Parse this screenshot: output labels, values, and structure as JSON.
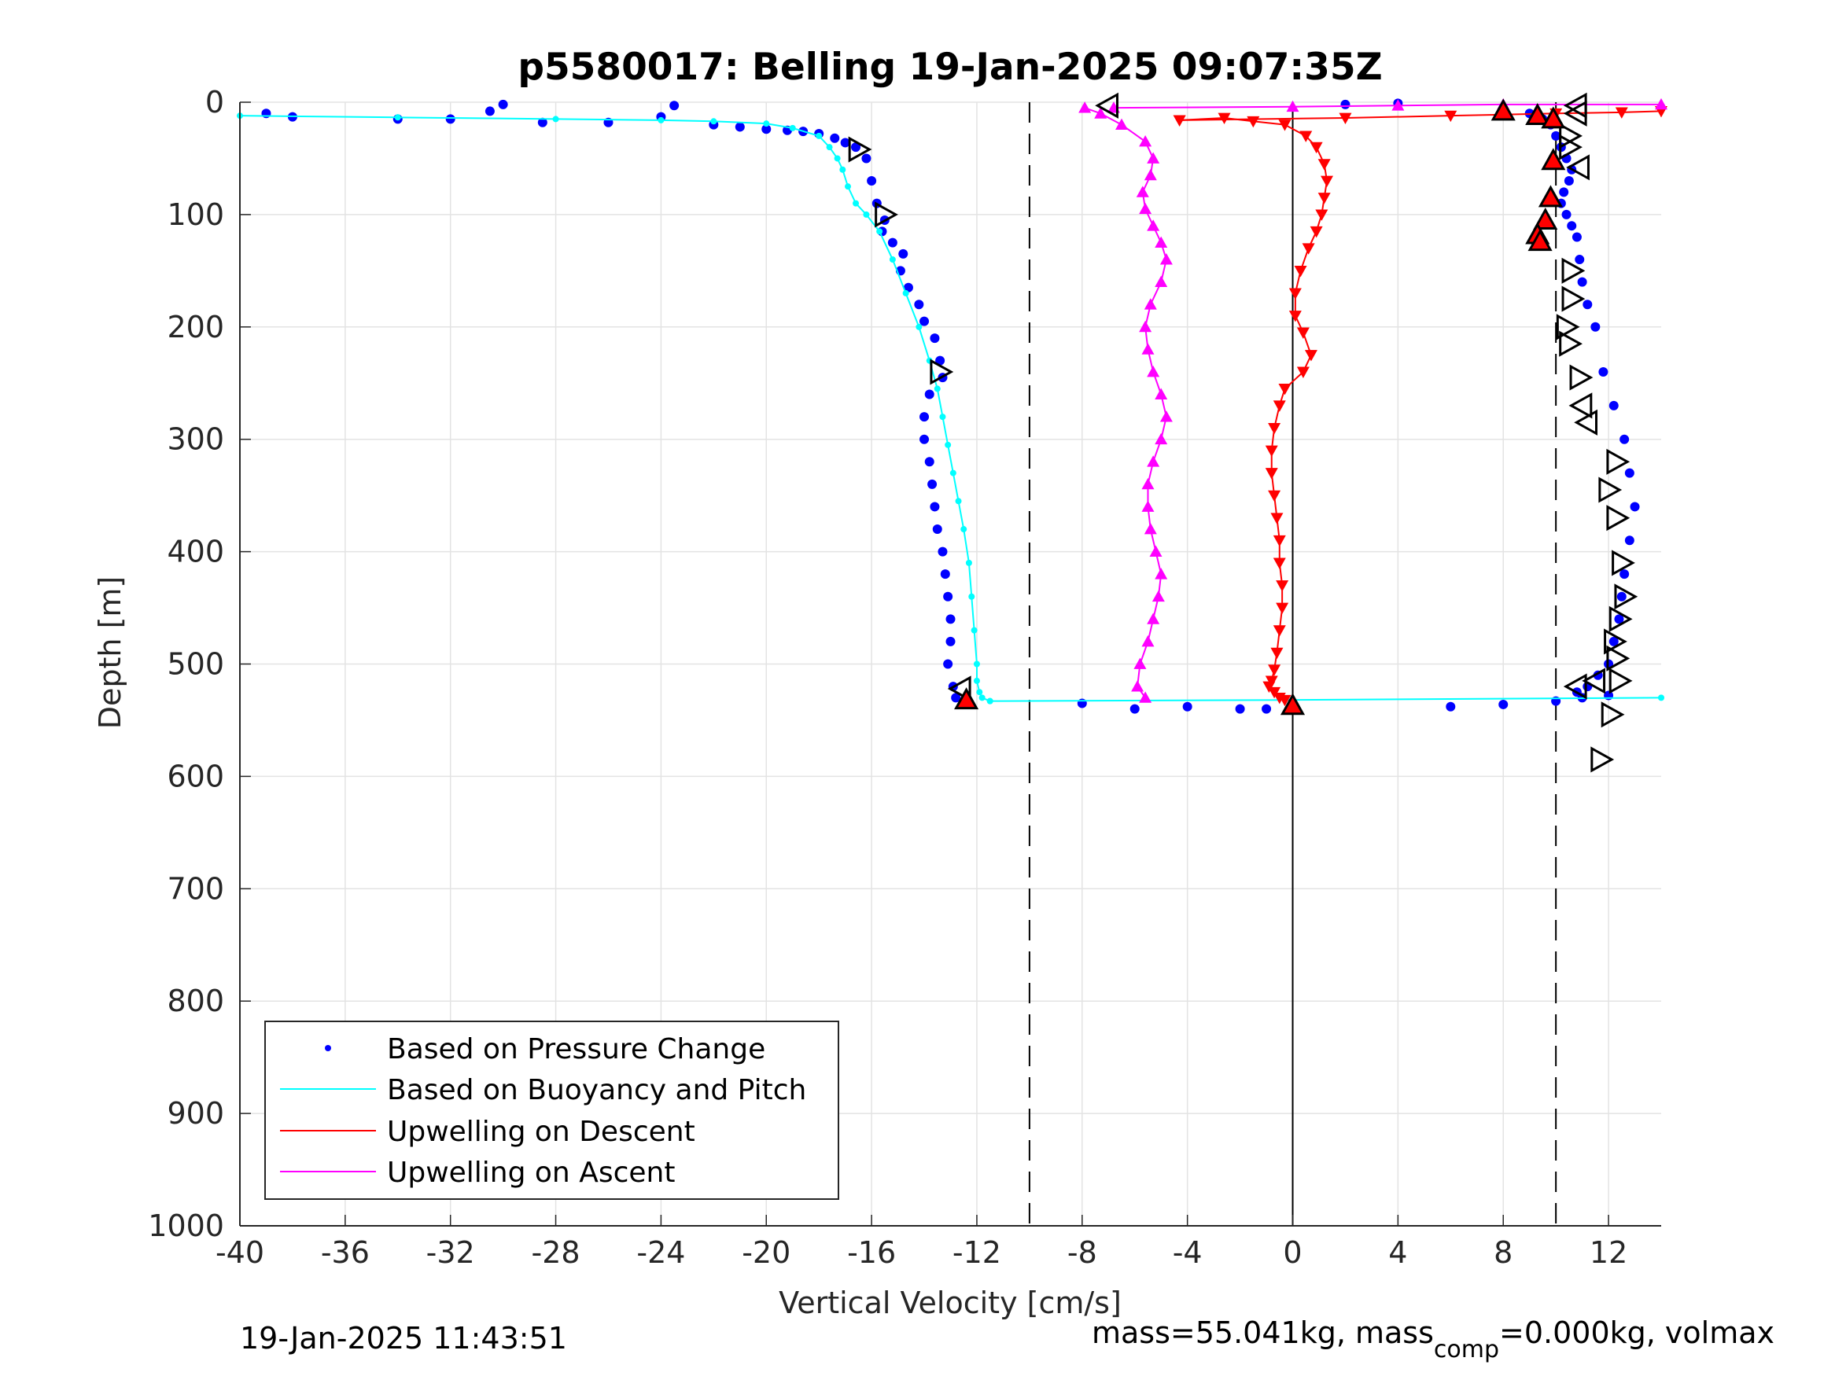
{
  "chart_data": {
    "type": "scatter",
    "title": "p5580017: Belling 19-Jan-2025 09:07:35Z",
    "xlabel": "Vertical Velocity [cm/s]",
    "ylabel": "Depth [m]",
    "xlim": [
      -40,
      14
    ],
    "ylim": [
      0,
      1000
    ],
    "y_reversed": true,
    "grid": true,
    "x_ticks": [
      "-40",
      "-36",
      "-32",
      "-28",
      "-24",
      "-20",
      "-16",
      "-12",
      "-8",
      "-4",
      "0",
      "4",
      "8",
      "12"
    ],
    "x_tick_values": [
      -40,
      -36,
      -32,
      -28,
      -24,
      -20,
      -16,
      -12,
      -8,
      -4,
      0,
      4,
      8,
      12
    ],
    "y_ticks": [
      "0",
      "100",
      "200",
      "300",
      "400",
      "500",
      "600",
      "700",
      "800",
      "900",
      "1000"
    ],
    "y_tick_values": [
      0,
      100,
      200,
      300,
      400,
      500,
      600,
      700,
      800,
      900,
      1000
    ],
    "reference_lines": {
      "dashed_x": [
        -10,
        10
      ],
      "solid_x": [
        0
      ]
    },
    "legend_position": "bottom-left",
    "legend": [
      "Based on Pressure Change",
      "Based on Buoyancy and Pitch",
      "Upwelling on Descent",
      "Upwelling on Ascent"
    ],
    "series": [
      {
        "name": "Based on Pressure Change",
        "kind": "points",
        "color": "#0000ff",
        "segments": [
          {
            "x": [
              -39,
              -38,
              -34,
              -32,
              -30.5,
              -28.5,
              -26,
              -24,
              -23.5,
              -22,
              -21,
              -20,
              -19.2,
              -18.6,
              -18,
              -17.4,
              -17,
              -16.6,
              -16.2,
              -16,
              -15.8,
              -15.5,
              -15.6,
              -15.2,
              -14.8,
              -14.9,
              -14.6,
              -14.2,
              -14,
              -13.6,
              -13.4,
              -13.3,
              -13.8,
              -14,
              -14,
              -13.8,
              -13.7,
              -13.6,
              -13.5,
              -13.3,
              -13.2,
              -13.1,
              -13,
              -13,
              -13.1,
              -12.9,
              -12.8
            ],
            "y": [
              10,
              13,
              15,
              15,
              8,
              18,
              18,
              13,
              3,
              20,
              22,
              24,
              25,
              26,
              28,
              32,
              36,
              40,
              50,
              70,
              90,
              105,
              115,
              125,
              135,
              150,
              165,
              180,
              195,
              210,
              230,
              245,
              260,
              280,
              300,
              320,
              340,
              360,
              380,
              400,
              420,
              440,
              460,
              480,
              500,
              520,
              530
            ]
          },
          {
            "x": [
              -30,
              2,
              4,
              6,
              8,
              10,
              11,
              12,
              -8,
              -6,
              -4,
              -2,
              -1
            ],
            "y": [
              2,
              2,
              1,
              538,
              536,
              533,
              530,
              528,
              535,
              540,
              538,
              540,
              540
            ]
          },
          {
            "x": [
              8,
              9,
              9.5,
              9.8,
              10,
              10.2,
              10.4,
              10.6,
              10.5,
              10.3,
              10.2,
              10.4,
              10.6,
              10.8,
              10.9,
              11.0,
              11.2,
              11.5,
              11.8,
              12.2,
              12.6,
              12.8,
              13,
              12.8,
              12.6,
              12.5,
              12.4,
              12.2,
              12,
              11.6,
              11.2,
              10.8
            ],
            "y": [
              5,
              10,
              15,
              20,
              30,
              40,
              50,
              60,
              70,
              80,
              90,
              100,
              110,
              120,
              140,
              160,
              180,
              200,
              240,
              270,
              300,
              330,
              360,
              390,
              420,
              440,
              460,
              480,
              500,
              510,
              520,
              525
            ]
          }
        ]
      },
      {
        "name": "Based on Buoyancy and Pitch",
        "kind": "line",
        "color": "#00ffff",
        "segments": [
          {
            "x": [
              -40,
              -34,
              -28,
              -24,
              -22,
              -20,
              -19,
              -18,
              -17.6,
              -17.3,
              -17.1,
              -16.9,
              -16.6,
              -16.2,
              -15.7,
              -15.2,
              -14.7,
              -14.2,
              -13.8,
              -13.5,
              -13.3,
              -13.1,
              -12.9,
              -12.7,
              -12.5,
              -12.3,
              -12.2,
              -12.1,
              -12.0,
              -12.0,
              -11.9,
              -11.8,
              -11.5
            ],
            "y": [
              12,
              13.5,
              15,
              16,
              17,
              19,
              23,
              30,
              40,
              50,
              60,
              75,
              90,
              100,
              115,
              140,
              170,
              200,
              230,
              255,
              280,
              305,
              330,
              355,
              380,
              410,
              440,
              470,
              500,
              515,
              525,
              530,
              533
            ]
          },
          {
            "x": [
              -11.5,
              0,
              14
            ],
            "y": [
              533,
              532,
              530
            ]
          }
        ]
      },
      {
        "name": "Upwelling on Descent",
        "kind": "markers_down",
        "color": "#ff0000",
        "segments": [
          {
            "x": [
              -4.3,
              -2.6,
              -1.5,
              -0.3,
              0.5,
              0.9,
              1.2,
              1.3,
              1.2,
              1.1,
              0.9,
              0.6,
              0.3,
              0.1,
              0.1,
              0.4,
              0.7,
              0.4,
              -0.3,
              -0.5,
              -0.7,
              -0.8,
              -0.8,
              -0.7,
              -0.6,
              -0.5,
              -0.5,
              -0.4,
              -0.4,
              -0.5,
              -0.6,
              -0.7,
              -0.8,
              -0.9,
              -0.7,
              -0.5,
              -0.3
            ],
            "y": [
              16,
              14,
              17,
              20,
              30,
              40,
              55,
              70,
              85,
              100,
              115,
              130,
              150,
              170,
              190,
              205,
              225,
              240,
              255,
              270,
              290,
              310,
              330,
              350,
              370,
              390,
              410,
              430,
              450,
              470,
              490,
              505,
              515,
              520,
              525,
              530,
              532
            ]
          },
          {
            "x": [
              -4.3,
              2,
              6,
              10,
              12.5,
              14
            ],
            "y": [
              16,
              14,
              12,
              10,
              9,
              8
            ]
          }
        ]
      },
      {
        "name": "Upwelling on Ascent",
        "kind": "markers_up",
        "color": "#ff00ff",
        "segments": [
          {
            "x": [
              -7.9,
              -7.3,
              -6.5,
              -5.6,
              -5.3,
              -5.4,
              -5.7,
              -5.6,
              -5.3,
              -5.0,
              -4.8,
              -5.0,
              -5.4,
              -5.6,
              -5.5,
              -5.3,
              -5.0,
              -4.8,
              -5.0,
              -5.3,
              -5.5,
              -5.5,
              -5.4,
              -5.2,
              -5.0,
              -5.1,
              -5.3,
              -5.5,
              -5.8,
              -5.9,
              -5.6
            ],
            "y": [
              5,
              10,
              20,
              35,
              50,
              65,
              80,
              95,
              110,
              125,
              140,
              160,
              180,
              200,
              220,
              240,
              260,
              280,
              300,
              320,
              340,
              360,
              380,
              400,
              420,
              440,
              460,
              480,
              500,
              520,
              530
            ]
          },
          {
            "x": [
              -6.8,
              0,
              4,
              8,
              14
            ],
            "y": [
              5,
              4,
              3,
              2,
              2
            ]
          }
        ]
      }
    ],
    "markers_right": {
      "x": [
        -16.5,
        -15.5,
        -13.4,
        10.5,
        10.5,
        10.6,
        10.6,
        10.4,
        10.9,
        10.5,
        12.3,
        12.0,
        12.3,
        12.5,
        12.6,
        12.4,
        12.2,
        12.3,
        12.4,
        12.1,
        11.7
      ],
      "y": [
        42,
        100,
        240,
        30,
        40,
        150,
        175,
        200,
        245,
        215,
        320,
        345,
        370,
        410,
        440,
        460,
        480,
        495,
        515,
        545,
        585
      ]
    },
    "markers_left": {
      "x": [
        -7.0,
        10.8,
        -12.6,
        10.8,
        10.9,
        11.0,
        11.2,
        10.8,
        11.5
      ],
      "y": [
        3,
        3,
        522,
        10,
        58,
        270,
        285,
        520,
        515
      ]
    },
    "markers_up_red": {
      "x": [
        8.0,
        9.3,
        9.9,
        9.9,
        9.8,
        9.6,
        9.3,
        9.4,
        -12.4,
        0
      ],
      "y": [
        8,
        12,
        15,
        52,
        85,
        105,
        118,
        124,
        532,
        537
      ]
    },
    "footer_left": "19-Jan-2025 11:43:51",
    "footer_right_prefix": "mass=55.041kg, mass",
    "footer_right_sub": "comp",
    "footer_right_suffix": "=0.000kg, volmax"
  }
}
